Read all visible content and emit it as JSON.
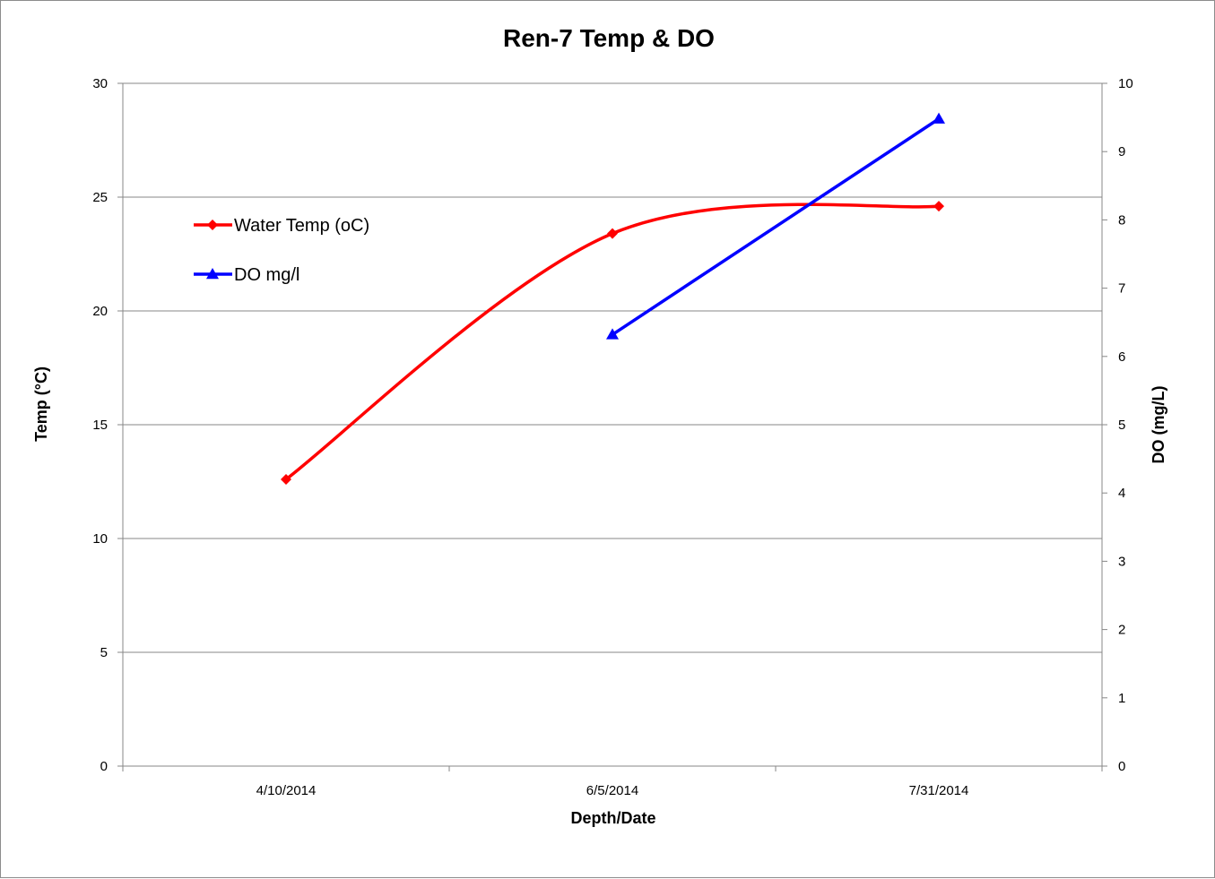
{
  "chart_data": {
    "type": "line",
    "title": "Ren-7 Temp & DO",
    "xlabel": "Depth/Date",
    "ylabel": "Temp (°C)",
    "ylabel_right": "DO (mg/L)",
    "categories": [
      "4/10/2014",
      "6/5/2014",
      "7/31/2014"
    ],
    "ylim": [
      0,
      30
    ],
    "y_ticks": [
      "0",
      "5",
      "10",
      "15",
      "20",
      "25",
      "30"
    ],
    "y2lim": [
      0,
      10
    ],
    "y2_ticks": [
      "0",
      "1",
      "2",
      "3",
      "4",
      "5",
      "6",
      "7",
      "8",
      "9",
      "10"
    ],
    "grid": true,
    "legend_position": "top-left",
    "series": [
      {
        "name": "Water Temp (oC)",
        "axis": "left",
        "values": [
          12.6,
          23.4,
          24.6
        ],
        "color": "#ff0000",
        "marker": "diamond",
        "smooth": true
      },
      {
        "name": "DO mg/l",
        "axis": "right",
        "values": [
          null,
          6.32,
          9.48
        ],
        "color": "#0000ff",
        "marker": "triangle",
        "smooth": false
      }
    ]
  }
}
